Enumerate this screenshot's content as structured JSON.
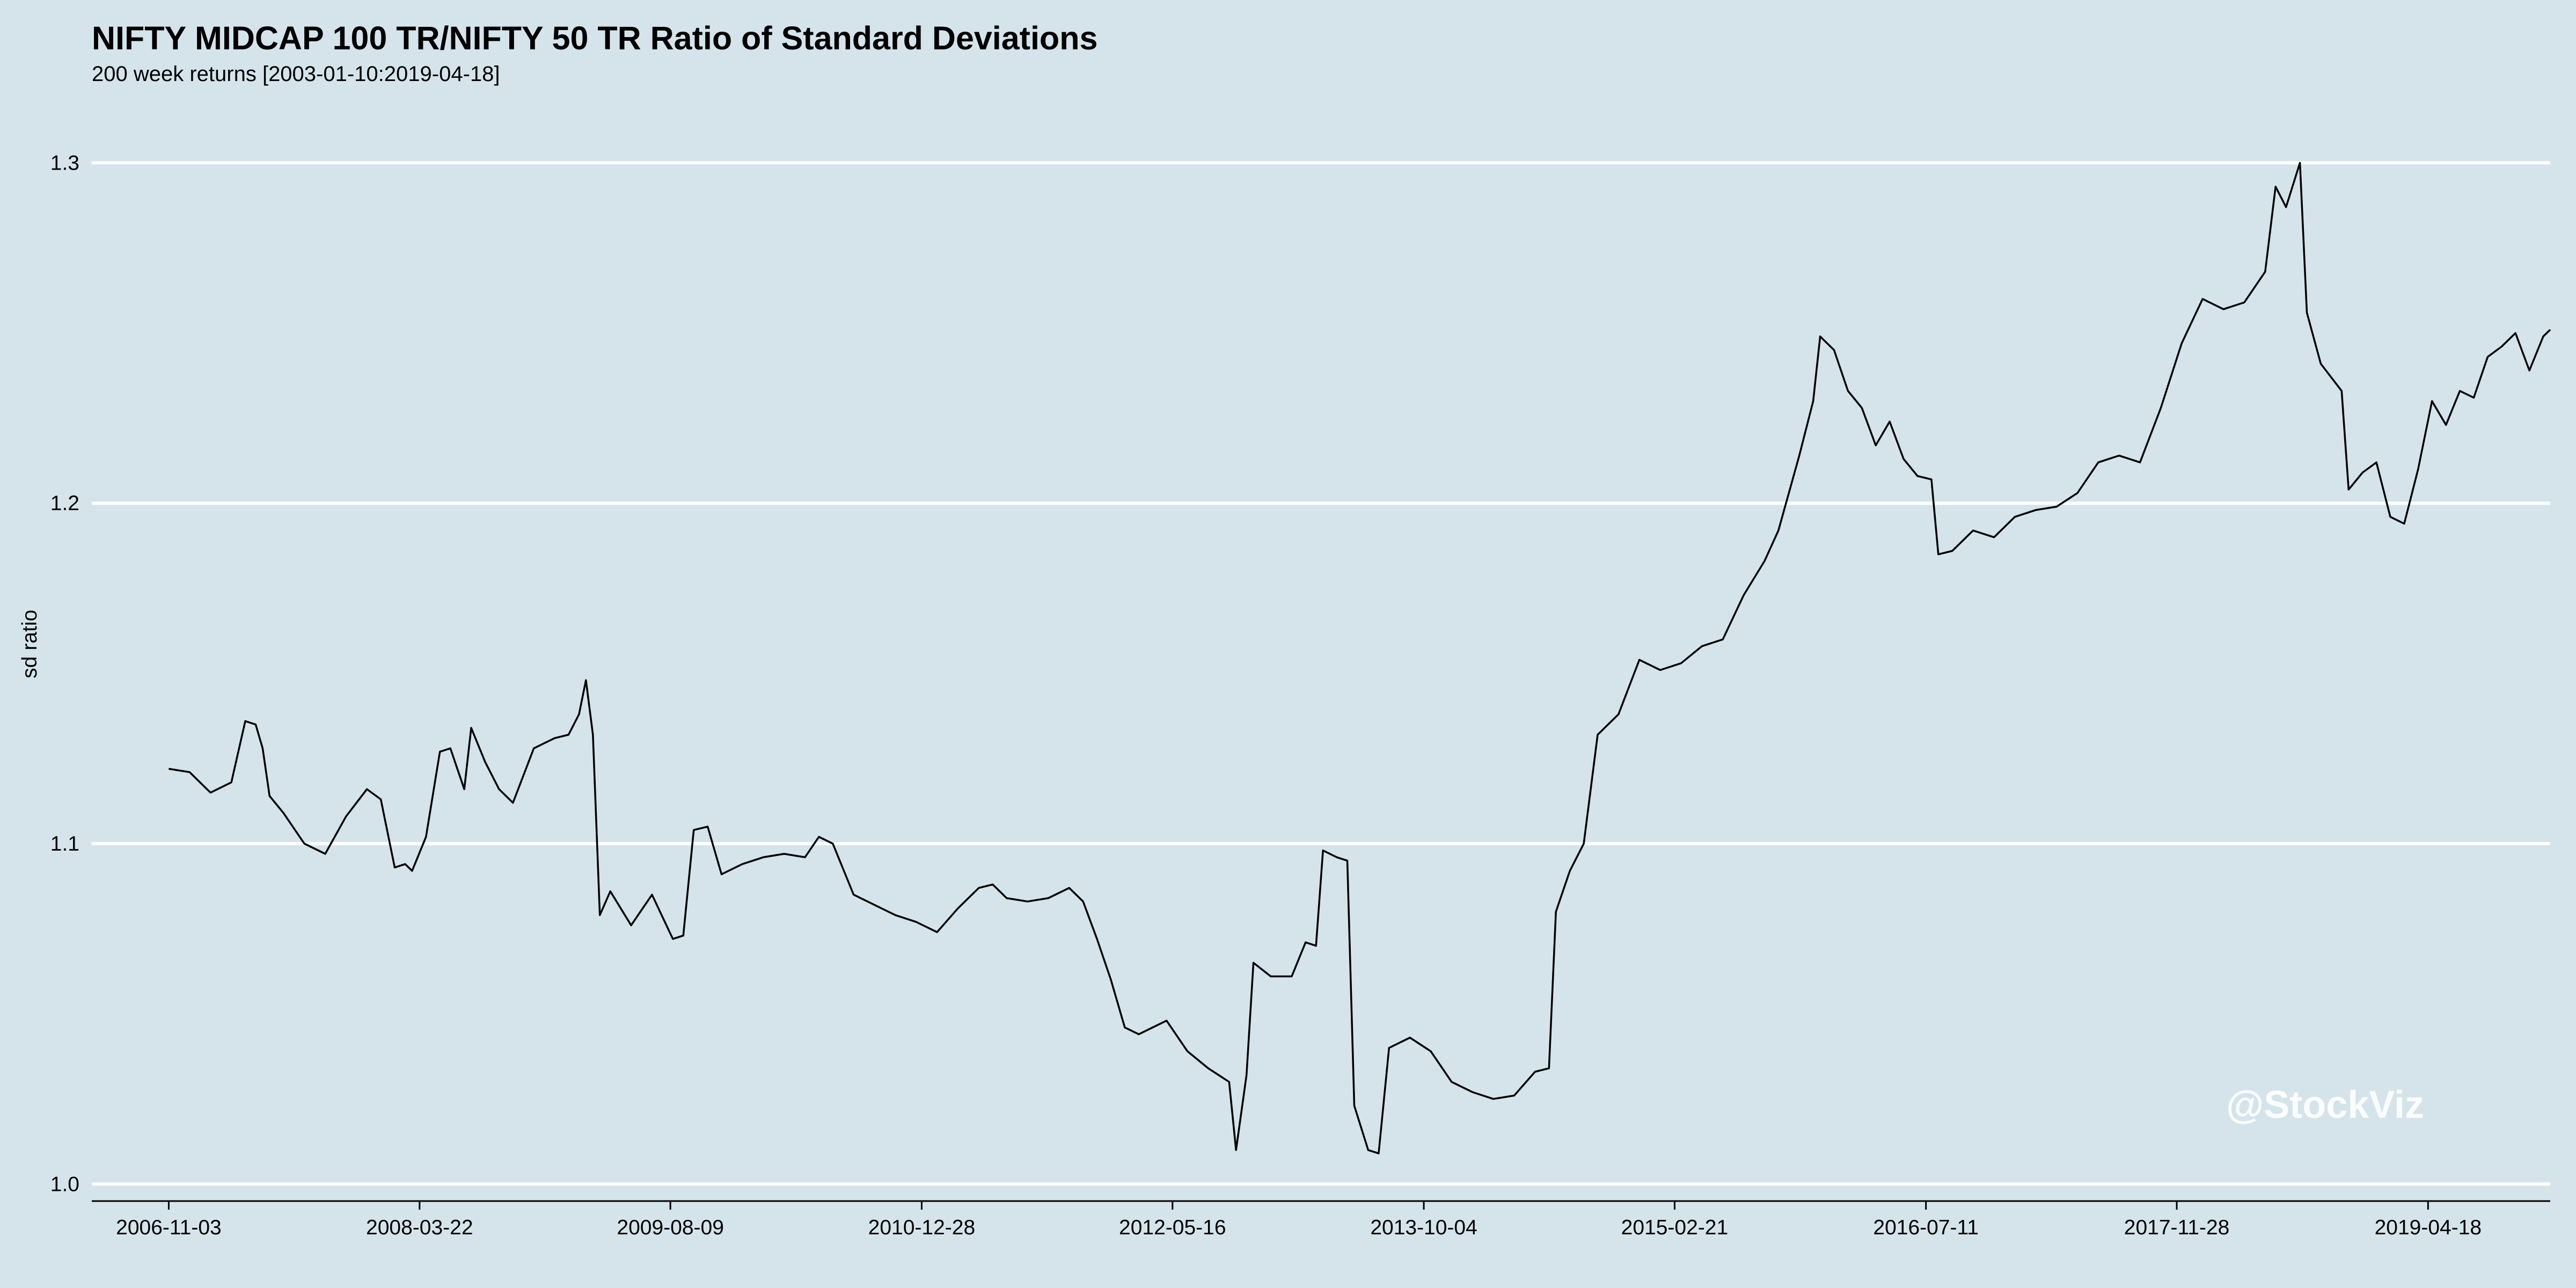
{
  "chart_data": {
    "type": "line",
    "title": "NIFTY MIDCAP 100 TR/NIFTY 50 TR Ratio of Standard Deviations",
    "subtitle": "200 week returns [2003-01-10:2019-04-18]",
    "xlabel": "",
    "ylabel": "sd ratio",
    "ylim": [
      0.995,
      1.31
    ],
    "xlim": [
      "2006-06-01",
      "2019-12-20"
    ],
    "y_ticks": [
      1.0,
      1.1,
      1.2,
      1.3
    ],
    "y_tick_labels": [
      "1.0",
      "1.1",
      "1.2",
      "1.3"
    ],
    "x_tick_labels": [
      "2006-11-03",
      "2008-03-22",
      "2009-08-09",
      "2010-12-28",
      "2012-05-16",
      "2013-10-04",
      "2015-02-21",
      "2016-07-11",
      "2017-11-28",
      "2019-04-18"
    ],
    "grid": "horizontal",
    "legend": "none",
    "line_color": "#000000",
    "gridline_color": "#ffffff",
    "series": [
      {
        "points": [
          [
            "2006-11-03",
            1.122
          ],
          [
            "2006-12-15",
            1.121
          ],
          [
            "2007-01-26",
            1.115
          ],
          [
            "2007-03-09",
            1.118
          ],
          [
            "2007-04-06",
            1.136
          ],
          [
            "2007-04-27",
            1.135
          ],
          [
            "2007-05-11",
            1.128
          ],
          [
            "2007-05-25",
            1.114
          ],
          [
            "2007-06-22",
            1.109
          ],
          [
            "2007-08-03",
            1.1
          ],
          [
            "2007-09-14",
            1.097
          ],
          [
            "2007-10-26",
            1.108
          ],
          [
            "2007-12-07",
            1.116
          ],
          [
            "2008-01-04",
            1.113
          ],
          [
            "2008-02-01",
            1.093
          ],
          [
            "2008-02-22",
            1.094
          ],
          [
            "2008-03-07",
            1.092
          ],
          [
            "2008-04-04",
            1.102
          ],
          [
            "2008-05-02",
            1.127
          ],
          [
            "2008-05-23",
            1.128
          ],
          [
            "2008-06-20",
            1.116
          ],
          [
            "2008-07-04",
            1.134
          ],
          [
            "2008-08-01",
            1.124
          ],
          [
            "2008-08-29",
            1.116
          ],
          [
            "2008-09-26",
            1.112
          ],
          [
            "2008-11-07",
            1.128
          ],
          [
            "2008-12-19",
            1.131
          ],
          [
            "2009-01-16",
            1.132
          ],
          [
            "2009-02-06",
            1.138
          ],
          [
            "2009-02-20",
            1.148
          ],
          [
            "2009-03-06",
            1.132
          ],
          [
            "2009-03-20",
            1.079
          ],
          [
            "2009-04-10",
            1.086
          ],
          [
            "2009-05-22",
            1.076
          ],
          [
            "2009-07-03",
            1.085
          ],
          [
            "2009-08-14",
            1.072
          ],
          [
            "2009-09-04",
            1.073
          ],
          [
            "2009-09-25",
            1.104
          ],
          [
            "2009-10-23",
            1.105
          ],
          [
            "2009-11-20",
            1.091
          ],
          [
            "2010-01-01",
            1.094
          ],
          [
            "2010-02-12",
            1.096
          ],
          [
            "2010-03-26",
            1.097
          ],
          [
            "2010-05-07",
            1.096
          ],
          [
            "2010-06-04",
            1.102
          ],
          [
            "2010-07-02",
            1.1
          ],
          [
            "2010-08-13",
            1.085
          ],
          [
            "2010-09-24",
            1.082
          ],
          [
            "2010-11-05",
            1.079
          ],
          [
            "2010-12-17",
            1.077
          ],
          [
            "2011-01-28",
            1.074
          ],
          [
            "2011-03-11",
            1.081
          ],
          [
            "2011-04-22",
            1.087
          ],
          [
            "2011-05-20",
            1.088
          ],
          [
            "2011-06-17",
            1.084
          ],
          [
            "2011-07-29",
            1.083
          ],
          [
            "2011-09-09",
            1.084
          ],
          [
            "2011-10-21",
            1.087
          ],
          [
            "2011-11-18",
            1.083
          ],
          [
            "2011-12-16",
            1.072
          ],
          [
            "2012-01-13",
            1.06
          ],
          [
            "2012-02-10",
            1.046
          ],
          [
            "2012-03-09",
            1.044
          ],
          [
            "2012-04-06",
            1.046
          ],
          [
            "2012-05-04",
            1.048
          ],
          [
            "2012-06-15",
            1.039
          ],
          [
            "2012-07-27",
            1.034
          ],
          [
            "2012-09-07",
            1.03
          ],
          [
            "2012-09-21",
            1.01
          ],
          [
            "2012-10-12",
            1.032
          ],
          [
            "2012-10-26",
            1.065
          ],
          [
            "2012-11-30",
            1.061
          ],
          [
            "2013-01-11",
            1.061
          ],
          [
            "2013-02-08",
            1.071
          ],
          [
            "2013-03-01",
            1.07
          ],
          [
            "2013-03-15",
            1.098
          ],
          [
            "2013-04-12",
            1.096
          ],
          [
            "2013-05-03",
            1.095
          ],
          [
            "2013-05-17",
            1.023
          ],
          [
            "2013-06-14",
            1.01
          ],
          [
            "2013-07-05",
            1.009
          ],
          [
            "2013-07-26",
            1.04
          ],
          [
            "2013-09-06",
            1.043
          ],
          [
            "2013-10-18",
            1.039
          ],
          [
            "2013-11-29",
            1.03
          ],
          [
            "2014-01-10",
            1.027
          ],
          [
            "2014-02-21",
            1.025
          ],
          [
            "2014-04-04",
            1.026
          ],
          [
            "2014-05-16",
            1.033
          ],
          [
            "2014-06-13",
            1.034
          ],
          [
            "2014-06-27",
            1.08
          ],
          [
            "2014-07-25",
            1.092
          ],
          [
            "2014-08-22",
            1.1
          ],
          [
            "2014-09-19",
            1.132
          ],
          [
            "2014-10-31",
            1.138
          ],
          [
            "2014-12-12",
            1.154
          ],
          [
            "2015-01-23",
            1.151
          ],
          [
            "2015-03-06",
            1.153
          ],
          [
            "2015-04-17",
            1.158
          ],
          [
            "2015-05-29",
            1.16
          ],
          [
            "2015-07-10",
            1.173
          ],
          [
            "2015-08-21",
            1.183
          ],
          [
            "2015-09-18",
            1.192
          ],
          [
            "2015-10-30",
            1.214
          ],
          [
            "2015-11-27",
            1.23
          ],
          [
            "2015-12-11",
            1.249
          ],
          [
            "2016-01-08",
            1.245
          ],
          [
            "2016-02-05",
            1.233
          ],
          [
            "2016-03-04",
            1.228
          ],
          [
            "2016-04-01",
            1.217
          ],
          [
            "2016-04-29",
            1.224
          ],
          [
            "2016-05-27",
            1.213
          ],
          [
            "2016-06-24",
            1.208
          ],
          [
            "2016-07-22",
            1.207
          ],
          [
            "2016-08-05",
            1.185
          ],
          [
            "2016-09-02",
            1.186
          ],
          [
            "2016-10-14",
            1.192
          ],
          [
            "2016-11-25",
            1.19
          ],
          [
            "2017-01-06",
            1.196
          ],
          [
            "2017-02-17",
            1.198
          ],
          [
            "2017-03-31",
            1.199
          ],
          [
            "2017-05-12",
            1.203
          ],
          [
            "2017-06-23",
            1.212
          ],
          [
            "2017-08-04",
            1.214
          ],
          [
            "2017-09-15",
            1.212
          ],
          [
            "2017-10-27",
            1.228
          ],
          [
            "2017-12-08",
            1.247
          ],
          [
            "2018-01-19",
            1.26
          ],
          [
            "2018-03-02",
            1.257
          ],
          [
            "2018-04-13",
            1.259
          ],
          [
            "2018-05-25",
            1.268
          ],
          [
            "2018-06-15",
            1.293
          ],
          [
            "2018-07-06",
            1.287
          ],
          [
            "2018-08-03",
            1.3
          ],
          [
            "2018-08-17",
            1.256
          ],
          [
            "2018-09-14",
            1.241
          ],
          [
            "2018-10-26",
            1.233
          ],
          [
            "2018-11-09",
            1.204
          ],
          [
            "2018-12-07",
            1.209
          ],
          [
            "2019-01-04",
            1.212
          ],
          [
            "2019-02-01",
            1.196
          ],
          [
            "2019-03-01",
            1.194
          ],
          [
            "2019-03-29",
            1.21
          ],
          [
            "2019-04-26",
            1.23
          ],
          [
            "2019-05-24",
            1.223
          ],
          [
            "2019-06-21",
            1.233
          ],
          [
            "2019-07-19",
            1.231
          ],
          [
            "2019-08-16",
            1.243
          ],
          [
            "2019-09-13",
            1.246
          ],
          [
            "2019-10-11",
            1.25
          ],
          [
            "2019-11-08",
            1.239
          ],
          [
            "2019-12-06",
            1.249
          ],
          [
            "2019-12-20",
            1.251
          ]
        ]
      }
    ]
  },
  "watermark": "@StockViz"
}
